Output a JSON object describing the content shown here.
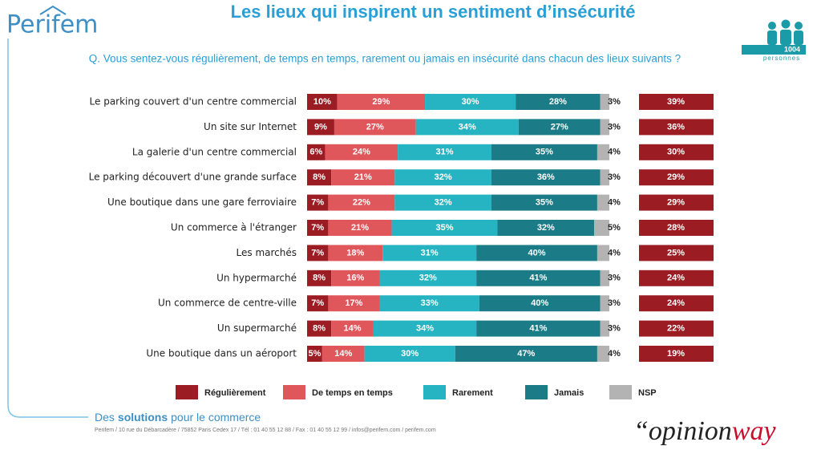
{
  "header": {
    "logo": "Perifem",
    "title": "Les lieux qui inspirent un sentiment d’insécurité",
    "question": "Q. Vous sentez-vous régulièrement, de temps en temps, rarement ou jamais en insécurité dans chacun des lieux suivants ?",
    "sample": "1004",
    "sample_unit": "personnes"
  },
  "chart_data": {
    "type": "stacked-bar-horizontal",
    "categories": [
      "Le parking couvert d'un centre commercial",
      "Un site sur Internet",
      "La galerie d'un centre commercial",
      "Le parking découvert d'une grande surface",
      "Une boutique dans une gare ferroviaire",
      "Un commerce à l'étranger",
      "Les marchés",
      "Un hypermarché",
      "Un commerce de centre-ville",
      "Un supermarché",
      "Une boutique dans un aéroport"
    ],
    "xlim": [
      0,
      100
    ],
    "series": [
      {
        "name": "Régulièrement",
        "color": "#9b1c22",
        "values": [
          10,
          9,
          6,
          8,
          7,
          7,
          7,
          8,
          7,
          8,
          5
        ],
        "value_labels": [
          "10%",
          "9%",
          "6%",
          "8%",
          "7%",
          "7%",
          "7%",
          "8%",
          "7%",
          "8%",
          "5%"
        ]
      },
      {
        "name": "De temps en temps",
        "color": "#e0575b",
        "values": [
          29,
          27,
          24,
          21,
          22,
          21,
          18,
          16,
          17,
          14,
          14
        ],
        "value_labels": [
          "29%",
          "27%",
          "24%",
          "21%",
          "22%",
          "21%",
          "18%",
          "16%",
          "17%",
          "14%",
          "14%"
        ]
      },
      {
        "name": "Rarement",
        "color": "#27b4c2",
        "values": [
          30,
          34,
          31,
          32,
          32,
          35,
          31,
          32,
          33,
          34,
          30
        ],
        "value_labels": [
          "30%",
          "34%",
          "31%",
          "32%",
          "32%",
          "35%",
          "31%",
          "32%",
          "33%",
          "34%",
          "30%"
        ]
      },
      {
        "name": "Jamais",
        "color": "#1b7c87",
        "values": [
          28,
          27,
          35,
          36,
          35,
          32,
          40,
          41,
          40,
          41,
          47
        ],
        "value_labels": [
          "28%",
          "27%",
          "35%",
          "36%",
          "35%",
          "32%",
          "40%",
          "41%",
          "40%",
          "41%",
          "47%"
        ]
      },
      {
        "name": "NSP",
        "color": "#b3b3b3",
        "values": [
          3,
          3,
          4,
          3,
          4,
          5,
          4,
          3,
          3,
          3,
          4
        ],
        "value_labels": [
          "3%",
          "3%",
          "4%",
          "3%",
          "4%",
          "5%",
          "4%",
          "3%",
          "3%",
          "3%",
          "4%"
        ]
      }
    ],
    "totals": {
      "color": "#9b1c22",
      "values": [
        39,
        36,
        30,
        29,
        29,
        28,
        25,
        24,
        24,
        22,
        19
      ],
      "value_labels": [
        "39%",
        "36%",
        "30%",
        "29%",
        "29%",
        "28%",
        "25%",
        "24%",
        "24%",
        "22%",
        "19%"
      ]
    }
  },
  "footer": {
    "tagline": [
      "Des",
      "solutions",
      "pour le commerce"
    ],
    "address": "Perifem / 10 rue du Débarcadère / 75852 Paris Cedex 17 / Tél : 01 40 55 12 88 / Fax : 01 40 55 12 99 / infos@perifem.com / perifem.com",
    "brand": [
      "“opinion",
      "way"
    ]
  }
}
